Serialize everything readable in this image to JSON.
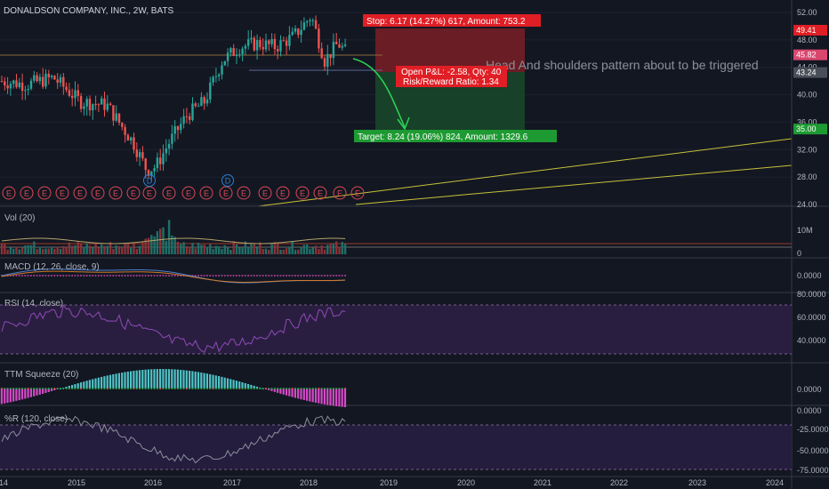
{
  "symbol_title": "DONALDSON COMPANY, INC., 2W, BATS",
  "annotation_text": "Head And shoulders pattern about to be triggered",
  "trade": {
    "stop_label": "Stop: 6.17 (14.27%) 617, Amount: 753.2",
    "target_label": "Target: 8.24 (19.06%) 824, Amount: 1329.6",
    "pnl_label": "Open P&L: -2.58, Qty: 40",
    "rr_label": "Risk/Reward Ratio: 1.34",
    "entry": 43.24,
    "stop": 49.41,
    "target": 35.0
  },
  "colors": {
    "background": "#131722",
    "up": "#26a69a",
    "down": "#ef5350",
    "stop_zone": "#7a1f24",
    "target_zone": "#18462a",
    "price_tag_red": "#e01e25",
    "price_tag_green": "#1e9a32",
    "price_tag_pink": "#d9476e",
    "price_tag_dark": "#4a4e58",
    "trend": "#c8c23a",
    "rsi_band": "#2a1e40",
    "wr_band": "#251d3e",
    "event_e": "#d94a54",
    "event_d": "#2a7fd4"
  },
  "price_axis": {
    "ticks": [
      "52.00",
      "48.00",
      "44.00",
      "40.00",
      "36.00",
      "32.00",
      "28.00",
      "24.00"
    ],
    "tags": [
      {
        "value": "49.41",
        "kind": "red"
      },
      {
        "value": "45.82",
        "kind": "pink"
      },
      {
        "value": "43.24",
        "kind": "dark"
      },
      {
        "value": "35.00",
        "kind": "green"
      }
    ]
  },
  "time_axis": [
    "14",
    "2015",
    "2016",
    "2017",
    "2018",
    "2019",
    "2020",
    "2021",
    "2022",
    "2023",
    "2024"
  ],
  "events": [
    "E",
    "E",
    "E",
    "E",
    "E",
    "E",
    "E",
    "E",
    "E",
    "E",
    "D",
    "E",
    "E",
    "E",
    "E",
    "D",
    "E",
    "E",
    "E",
    "E",
    "E",
    "E",
    "E",
    "E",
    "E"
  ],
  "panes": {
    "vol": {
      "title": "Vol (20)",
      "ticks": [
        "10M",
        "0"
      ]
    },
    "macd": {
      "title": "MACD (12, 26, close, 9)",
      "ticks": [
        "0.0000"
      ]
    },
    "rsi": {
      "title": "RSI (14, close)",
      "ticks": [
        "80.0000",
        "60.0000",
        "40.0000"
      ]
    },
    "ttm": {
      "title": "TTM Squeeze (20)",
      "ticks": [
        "0.0000"
      ]
    },
    "wr": {
      "title": "%R (120, close)",
      "ticks": [
        "0.0000",
        "-25.0000",
        "-50.0000",
        "-75.0000"
      ]
    }
  },
  "chart_data": {
    "type": "candlestick",
    "title": "DONALDSON COMPANY, INC., 2W, BATS",
    "ylim": [
      24,
      54
    ],
    "x_range": [
      "2014",
      "2024"
    ],
    "close_series": [
      {
        "x": "2014-01",
        "y": 43.5
      },
      {
        "x": "2014-03",
        "y": 42.0
      },
      {
        "x": "2014-05",
        "y": 43.0
      },
      {
        "x": "2014-07",
        "y": 41.5
      },
      {
        "x": "2014-09",
        "y": 41.0
      },
      {
        "x": "2014-11",
        "y": 38.5
      },
      {
        "x": "2015-01",
        "y": 39.5
      },
      {
        "x": "2015-03",
        "y": 38.0
      },
      {
        "x": "2015-05",
        "y": 37.5
      },
      {
        "x": "2015-07",
        "y": 36.0
      },
      {
        "x": "2015-09",
        "y": 31.5
      },
      {
        "x": "2015-11",
        "y": 30.5
      },
      {
        "x": "2016-01",
        "y": 28.5
      },
      {
        "x": "2016-03",
        "y": 31.0
      },
      {
        "x": "2016-05",
        "y": 34.0
      },
      {
        "x": "2016-07",
        "y": 37.0
      },
      {
        "x": "2016-09",
        "y": 38.0
      },
      {
        "x": "2016-11",
        "y": 41.0
      },
      {
        "x": "2017-01",
        "y": 43.0
      },
      {
        "x": "2017-03",
        "y": 46.0
      },
      {
        "x": "2017-05",
        "y": 47.5
      },
      {
        "x": "2017-07",
        "y": 47.0
      },
      {
        "x": "2017-09",
        "y": 46.5
      },
      {
        "x": "2017-11",
        "y": 48.5
      },
      {
        "x": "2018-01",
        "y": 51.5
      },
      {
        "x": "2018-02",
        "y": 48.0
      },
      {
        "x": "2018-04",
        "y": 45.0
      },
      {
        "x": "2018-05",
        "y": 47.5
      },
      {
        "x": "2018-06",
        "y": 45.8
      }
    ]
  }
}
